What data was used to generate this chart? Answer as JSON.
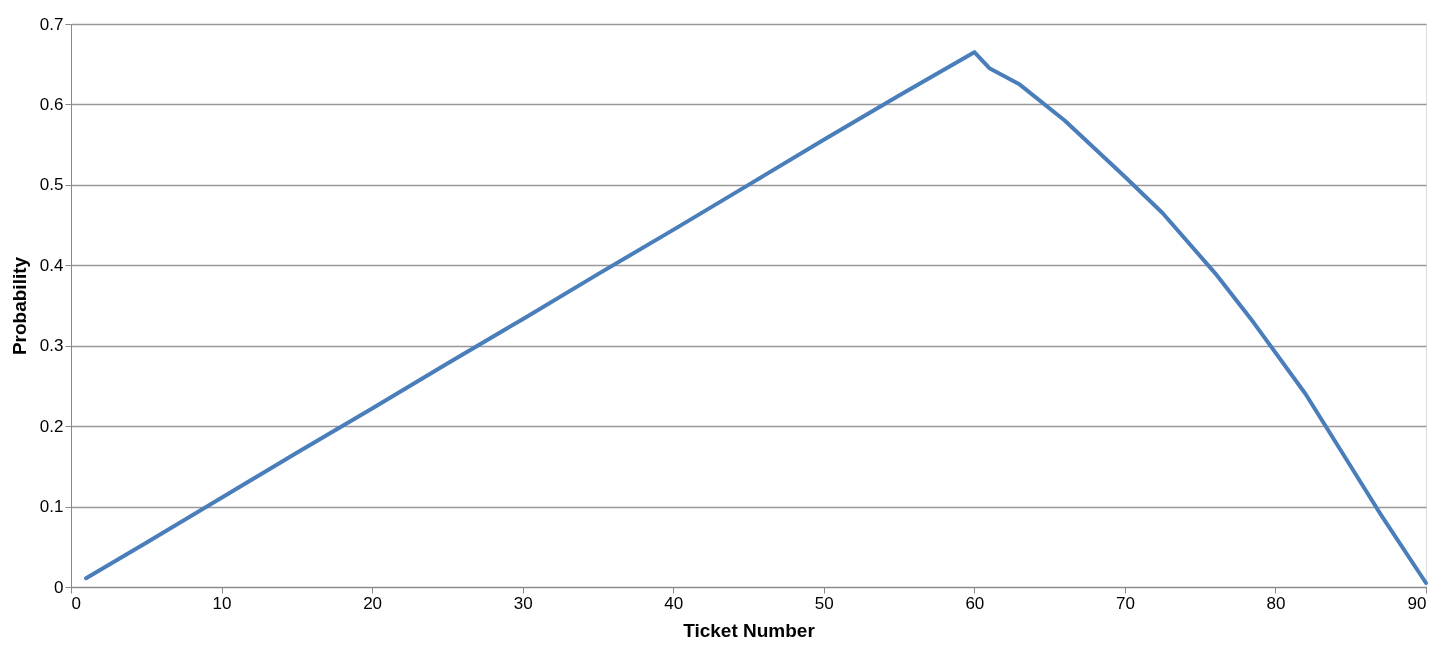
{
  "chart_data": {
    "type": "line",
    "xlabel": "Ticket Number",
    "ylabel": "Probability",
    "x": [
      1,
      5,
      10,
      15,
      20,
      25,
      30,
      35,
      40,
      45,
      50,
      55,
      60,
      61,
      63,
      66,
      70,
      72.5,
      76,
      78.5,
      82,
      84.5,
      87,
      90
    ],
    "series": [
      {
        "color": "#4a7ebb",
        "values": [
          0.011,
          0.055,
          0.111,
          0.167,
          0.222,
          0.278,
          0.333,
          0.389,
          0.444,
          0.5,
          0.556,
          0.611,
          0.665,
          0.645,
          0.625,
          0.58,
          0.51,
          0.465,
          0.39,
          0.33,
          0.24,
          0.165,
          0.09,
          0.005
        ]
      }
    ],
    "xlim": [
      0,
      90
    ],
    "xticks": [
      0,
      10,
      20,
      30,
      40,
      50,
      60,
      70,
      80,
      90
    ],
    "ylim": [
      0,
      0.7
    ],
    "yticks": [
      0,
      0.1,
      0.2,
      0.3,
      0.4,
      0.5,
      0.6,
      0.7
    ],
    "grid": "y",
    "marker": "none",
    "line_style": "solid"
  }
}
